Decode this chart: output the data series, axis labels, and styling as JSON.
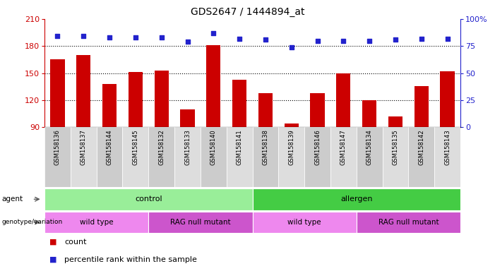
{
  "title": "GDS2647 / 1444894_at",
  "samples": [
    "GSM158136",
    "GSM158137",
    "GSM158144",
    "GSM158145",
    "GSM158132",
    "GSM158133",
    "GSM158140",
    "GSM158141",
    "GSM158138",
    "GSM158139",
    "GSM158146",
    "GSM158147",
    "GSM158134",
    "GSM158135",
    "GSM158142",
    "GSM158143"
  ],
  "counts": [
    165,
    170,
    138,
    151,
    153,
    110,
    181,
    143,
    128,
    94,
    128,
    150,
    120,
    102,
    136,
    152
  ],
  "percentiles": [
    84,
    84,
    83,
    83,
    83,
    79,
    87,
    82,
    81,
    74,
    80,
    80,
    80,
    81,
    82,
    82
  ],
  "ymin": 90,
  "ymax": 210,
  "y_ticks": [
    90,
    120,
    150,
    180,
    210
  ],
  "y2min": 0,
  "y2max": 100,
  "y2_ticks": [
    0,
    25,
    50,
    75,
    100
  ],
  "bar_color": "#cc0000",
  "scatter_color": "#2222cc",
  "agent_groups": [
    {
      "label": "control",
      "start": 0,
      "end": 8,
      "color": "#99ee99"
    },
    {
      "label": "allergen",
      "start": 8,
      "end": 16,
      "color": "#44cc44"
    }
  ],
  "genotype_groups": [
    {
      "label": "wild type",
      "start": 0,
      "end": 4,
      "color": "#ee88ee"
    },
    {
      "label": "RAG null mutant",
      "start": 4,
      "end": 8,
      "color": "#cc55cc"
    },
    {
      "label": "wild type",
      "start": 8,
      "end": 12,
      "color": "#ee88ee"
    },
    {
      "label": "RAG null mutant",
      "start": 12,
      "end": 16,
      "color": "#cc55cc"
    }
  ],
  "xtick_bg_even": "#cccccc",
  "xtick_bg_odd": "#dddddd"
}
